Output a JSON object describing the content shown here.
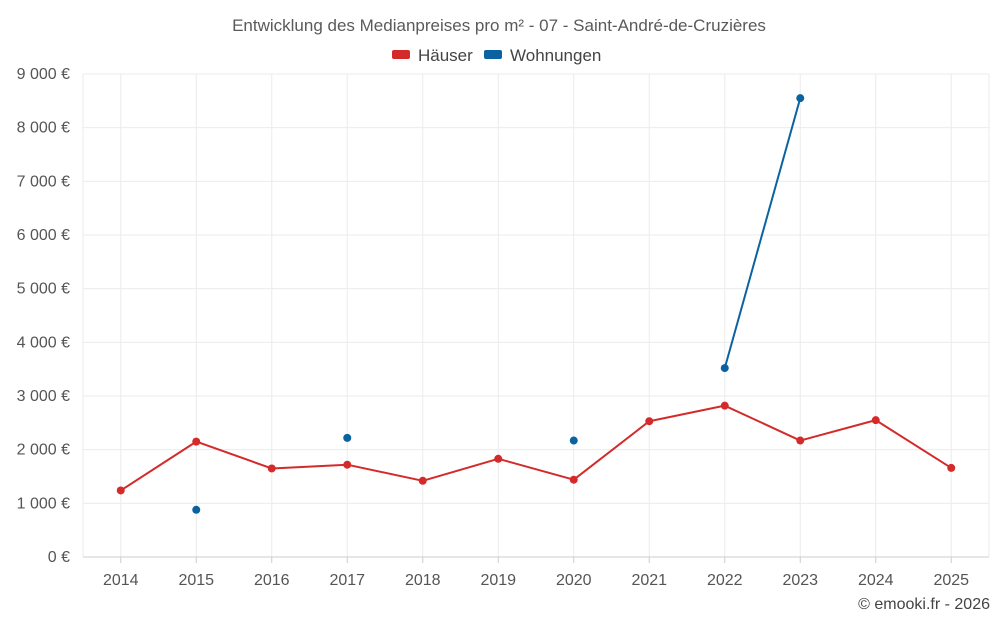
{
  "chart_data": {
    "type": "line",
    "title": "Entwicklung des Medianpreises pro m² - 07 - Saint-André-de-Cruzières",
    "categories": [
      "2014",
      "2015",
      "2016",
      "2017",
      "2018",
      "2019",
      "2020",
      "2021",
      "2022",
      "2023",
      "2024",
      "2025"
    ],
    "ylim": [
      0,
      9000
    ],
    "yticks": [
      0,
      1000,
      2000,
      3000,
      4000,
      5000,
      6000,
      7000,
      8000,
      9000
    ],
    "ytick_labels": [
      "0 €",
      "1 000 €",
      "2 000 €",
      "3 000 €",
      "4 000 €",
      "5 000 €",
      "6 000 €",
      "7 000 €",
      "8 000 €",
      "9 000 €"
    ],
    "grid": true,
    "legend_position": "top-center",
    "series": [
      {
        "name": "Häuser",
        "color": "#d42a2a",
        "values": [
          1240,
          2150,
          1650,
          1720,
          1420,
          1830,
          1440,
          2530,
          2820,
          2170,
          2550,
          1660
        ]
      },
      {
        "name": "Wohnungen",
        "color": "#0a63a0",
        "values": [
          null,
          880,
          null,
          2220,
          null,
          null,
          2170,
          null,
          3520,
          8550,
          null,
          null
        ]
      }
    ],
    "credit": "© emooki.fr - 2026"
  }
}
